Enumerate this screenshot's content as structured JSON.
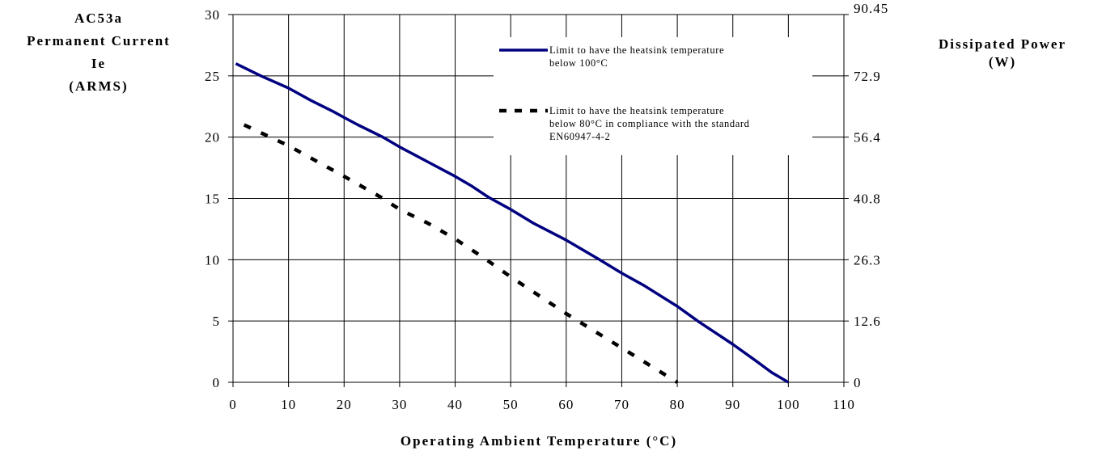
{
  "chart_data": {
    "type": "line",
    "xlabel": "Operating Ambient Temperature (°C)",
    "ylabel_lines": [
      "AC53a",
      "Permanent Current",
      "Ie",
      "(ARMS)"
    ],
    "y2label_lines": [
      "Dissipated Power",
      "(W)"
    ],
    "xlim": [
      0,
      110
    ],
    "ylim": [
      0,
      30
    ],
    "xticks": [
      "0",
      "10",
      "20",
      "30",
      "40",
      "50",
      "60",
      "70",
      "80",
      "90",
      "100",
      "110"
    ],
    "yticks": [
      "0",
      "5",
      "10",
      "15",
      "20",
      "25",
      "30"
    ],
    "y2ticks": [
      "0",
      "12.6",
      "26.3",
      "40.8",
      "56.4",
      "72.9",
      "90.45"
    ],
    "grid": true,
    "legend_position": "top-right",
    "series": [
      {
        "name": "Limit to have the heatsink temperature below 100°C",
        "legend_lines": [
          "Limit to have the heatsink temperature",
          "below 100°C"
        ],
        "style": "solid",
        "color": "#000080",
        "x": [
          0.5,
          5,
          10,
          14,
          18,
          20,
          22.5,
          27,
          30,
          35,
          40,
          43,
          46,
          50,
          54,
          60,
          66,
          70,
          74,
          80,
          84,
          87,
          90,
          94,
          97,
          100
        ],
        "y": [
          26,
          25,
          24,
          23,
          22.1,
          21.6,
          21,
          20,
          19.2,
          18,
          16.8,
          16,
          15.1,
          14.1,
          13,
          11.6,
          10,
          8.9,
          7.9,
          6.2,
          4.9,
          4,
          3.1,
          1.8,
          0.8,
          0
        ]
      },
      {
        "name": "Limit to have the heatsink temperature below 80°C in compliance with the standard EN60947-4-2",
        "legend_lines": [
          "Limit to have the heatsink temperature",
          "below 80°C in compliance with the standard",
          "EN60947-4-2"
        ],
        "style": "dashed",
        "color": "#000000",
        "x": [
          2,
          10,
          20,
          27,
          30,
          35,
          40,
          45,
          50,
          55,
          60,
          65,
          70,
          75,
          80
        ],
        "y": [
          21,
          19.3,
          16.8,
          15,
          14.1,
          13,
          11.7,
          10.2,
          8.6,
          7.1,
          5.6,
          4.2,
          2.8,
          1.4,
          0
        ]
      }
    ]
  }
}
